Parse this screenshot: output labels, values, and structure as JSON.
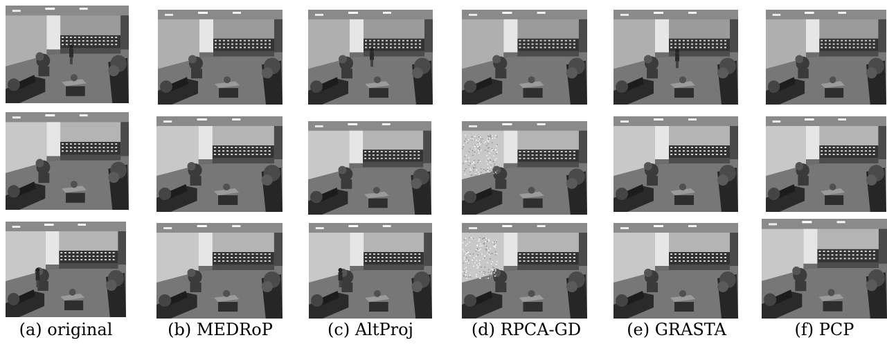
{
  "captions": [
    "(a) original",
    "(b) MEDRoP",
    "(c) AltProj",
    "(d) RPCA-GD",
    "(e) GRASTA",
    "(f) PCP"
  ],
  "rows": 3
}
